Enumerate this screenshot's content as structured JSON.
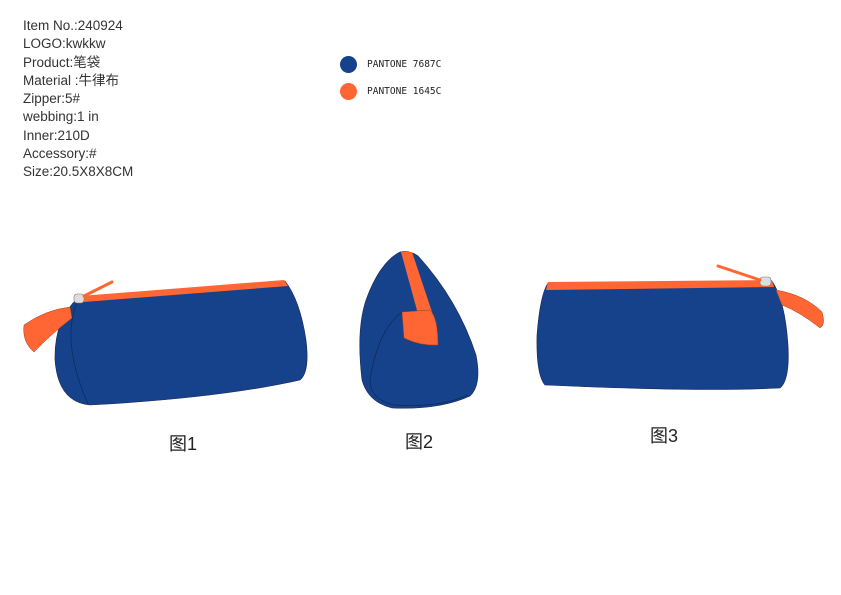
{
  "specs": [
    "Item No.:240924",
    "LOGO:kwkkw",
    "Product:笔袋",
    "Material :牛律布",
    "Zipper:5#",
    "webbing:1 in",
    "Inner:210D",
    "Accessory:#",
    "Size:20.5X8X8CM"
  ],
  "swatches": [
    {
      "label": "PANTONE 7687C",
      "color": "#15428A"
    },
    {
      "label": "PANTONE 1645C",
      "color": "#FF6633"
    }
  ],
  "figures": [
    {
      "caption": "图1"
    },
    {
      "caption": "图2"
    },
    {
      "caption": "图3"
    }
  ]
}
